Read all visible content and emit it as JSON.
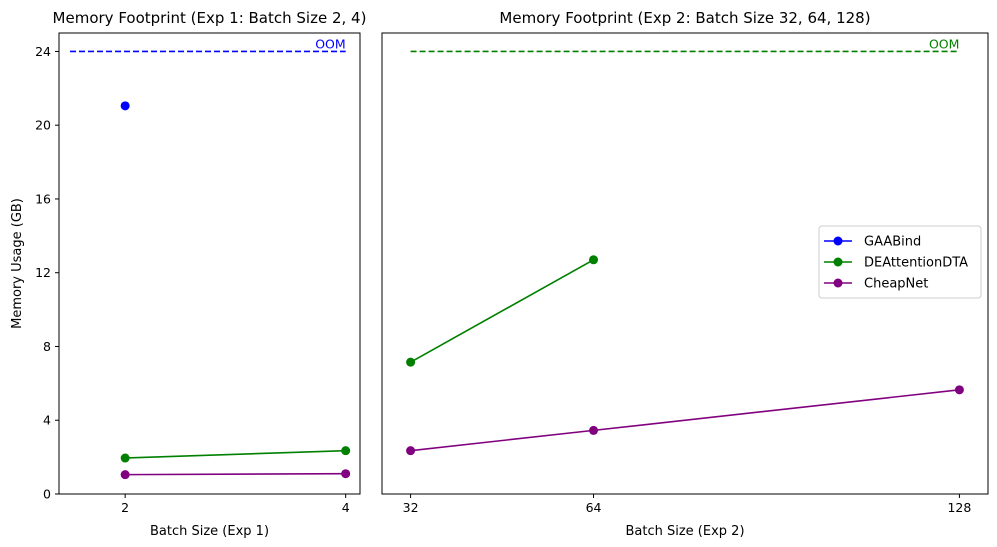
{
  "chart_data": [
    {
      "type": "line",
      "title": "Memory Footprint (Exp 1: Batch Size 2, 4)",
      "xlabel": "Batch Size (Exp 1)",
      "ylabel": "Memory Usage (GB)",
      "x_ticks": [
        "2",
        "4"
      ],
      "y_ticks": [
        "0",
        "4",
        "8",
        "12",
        "16",
        "20",
        "24"
      ],
      "xlim": [
        1.4,
        4.13
      ],
      "ylim": [
        0,
        25
      ],
      "reference_line": {
        "y": 24,
        "label": "OOM",
        "color": "#0000ff",
        "x_range": [
          1.5,
          4
        ]
      },
      "series": [
        {
          "name": "GAABind",
          "color": "#0000ff",
          "x": [
            2
          ],
          "y": [
            21.05
          ]
        },
        {
          "name": "DEAttentionDTA",
          "color": "#008000",
          "x": [
            2,
            4
          ],
          "y": [
            1.95,
            2.35
          ]
        },
        {
          "name": "CheapNet",
          "color": "#800080",
          "x": [
            2,
            4
          ],
          "y": [
            1.05,
            1.1
          ]
        }
      ]
    },
    {
      "type": "line",
      "title": "Memory Footprint (Exp 2: Batch Size 32, 64, 128)",
      "xlabel": "Batch Size (Exp 2)",
      "ylabel": "",
      "x_ticks": [
        "32",
        "64",
        "128"
      ],
      "y_ticks": [],
      "xlim": [
        27,
        133
      ],
      "ylim": [
        0,
        25
      ],
      "reference_line": {
        "y": 24,
        "label": "OOM",
        "color": "#008000",
        "x_range": [
          32,
          128
        ]
      },
      "legend": {
        "position": "center-right",
        "entries": [
          {
            "label": "GAABind",
            "color": "#0000ff"
          },
          {
            "label": "DEAttentionDTA",
            "color": "#008000"
          },
          {
            "label": "CheapNet",
            "color": "#800080"
          }
        ]
      },
      "series": [
        {
          "name": "DEAttentionDTA",
          "color": "#008000",
          "x": [
            32,
            64
          ],
          "y": [
            7.15,
            12.7
          ]
        },
        {
          "name": "CheapNet",
          "color": "#800080",
          "x": [
            32,
            64,
            128
          ],
          "y": [
            2.35,
            3.45,
            5.65
          ]
        }
      ]
    }
  ]
}
